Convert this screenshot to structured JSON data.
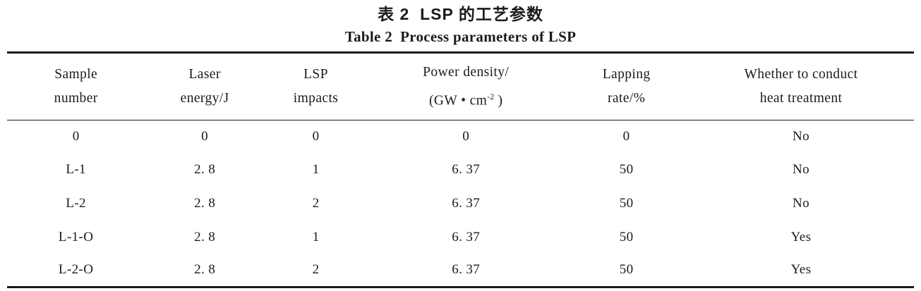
{
  "table": {
    "title_zh": "表 2  LSP 的工艺参数",
    "title_en": "Table 2  Process parameters of LSP",
    "columns": [
      {
        "line1": "Sample",
        "line2": "number"
      },
      {
        "line1": "Laser",
        "line2": "energy/J"
      },
      {
        "line1": "LSP",
        "line2": "impacts"
      },
      {
        "line1": "Power density/",
        "line2_pre": "(GW • cm",
        "line2_sup": "-2",
        "line2_post": " )"
      },
      {
        "line1": "Lapping",
        "line2": "rate/%"
      },
      {
        "line1": "Whether to conduct",
        "line2": "heat treatment"
      }
    ],
    "rows": [
      [
        "0",
        "0",
        "0",
        "0",
        "0",
        "No"
      ],
      [
        "L-1",
        "2. 8",
        "1",
        "6. 37",
        "50",
        "No"
      ],
      [
        "L-2",
        "2. 8",
        "2",
        "6. 37",
        "50",
        "No"
      ],
      [
        "L-1-O",
        "2. 8",
        "1",
        "6. 37",
        "50",
        "Yes"
      ],
      [
        "L-2-O",
        "2. 8",
        "2",
        "6. 37",
        "50",
        "Yes"
      ]
    ]
  },
  "colors": {
    "text": "#1b1b1b",
    "rule": "#1a1a1a",
    "background": "#ffffff"
  }
}
